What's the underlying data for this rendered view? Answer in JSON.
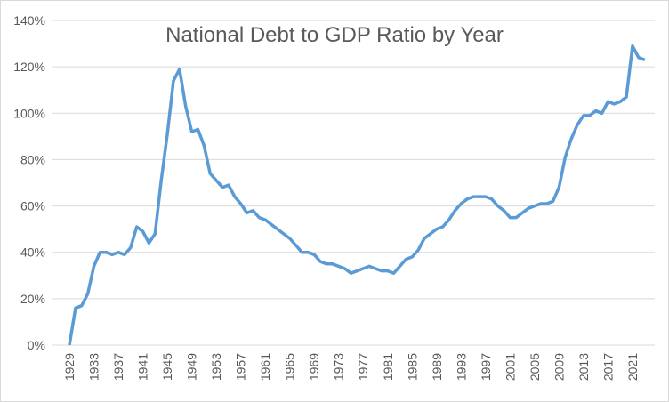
{
  "chart_data": {
    "type": "line",
    "title": "National Debt to GDP Ratio by Year",
    "xlabel": "",
    "ylabel": "",
    "ylim": [
      0,
      140
    ],
    "yticks": [
      "0%",
      "20%",
      "40%",
      "60%",
      "80%",
      "100%",
      "120%",
      "140%"
    ],
    "xtick_labels": [
      "1929",
      "1933",
      "1937",
      "1941",
      "1945",
      "1949",
      "1953",
      "1957",
      "1961",
      "1965",
      "1969",
      "1973",
      "1977",
      "1981",
      "1985",
      "1989",
      "1993",
      "1997",
      "2001",
      "2005",
      "2009",
      "2013",
      "2017",
      "2021"
    ],
    "grid": true,
    "legend": "none",
    "line_color": "#5B9BD5",
    "x": [
      1929,
      1930,
      1931,
      1932,
      1933,
      1934,
      1935,
      1936,
      1937,
      1938,
      1939,
      1940,
      1941,
      1942,
      1943,
      1944,
      1945,
      1946,
      1947,
      1948,
      1949,
      1950,
      1951,
      1952,
      1953,
      1954,
      1955,
      1956,
      1957,
      1958,
      1959,
      1960,
      1961,
      1962,
      1963,
      1964,
      1965,
      1966,
      1967,
      1968,
      1969,
      1970,
      1971,
      1972,
      1973,
      1974,
      1975,
      1976,
      1977,
      1978,
      1979,
      1980,
      1981,
      1982,
      1983,
      1984,
      1985,
      1986,
      1987,
      1988,
      1989,
      1990,
      1991,
      1992,
      1993,
      1994,
      1995,
      1996,
      1997,
      1998,
      1999,
      2000,
      2001,
      2002,
      2003,
      2004,
      2005,
      2006,
      2007,
      2008,
      2009,
      2010,
      2011,
      2012,
      2013,
      2014,
      2015,
      2016,
      2017,
      2018,
      2019,
      2020,
      2021,
      2022,
      2023
    ],
    "values": [
      0,
      16,
      17,
      22,
      34,
      40,
      40,
      39,
      40,
      39,
      42,
      51,
      49,
      44,
      48,
      71,
      91,
      114,
      119,
      103,
      92,
      93,
      86,
      74,
      71,
      68,
      69,
      64,
      61,
      57,
      58,
      55,
      54,
      52,
      50,
      48,
      46,
      43,
      40,
      40,
      39,
      36,
      35,
      35,
      34,
      33,
      31,
      32,
      33,
      34,
      33,
      32,
      32,
      31,
      34,
      37,
      38,
      41,
      46,
      48,
      50,
      51,
      54,
      58,
      61,
      63,
      64,
      64,
      64,
      63,
      60,
      58,
      55,
      55,
      57,
      59,
      60,
      61,
      61,
      62,
      68,
      81,
      89,
      95,
      99,
      99,
      101,
      100,
      105,
      104,
      105,
      107,
      129,
      124,
      123
    ]
  }
}
